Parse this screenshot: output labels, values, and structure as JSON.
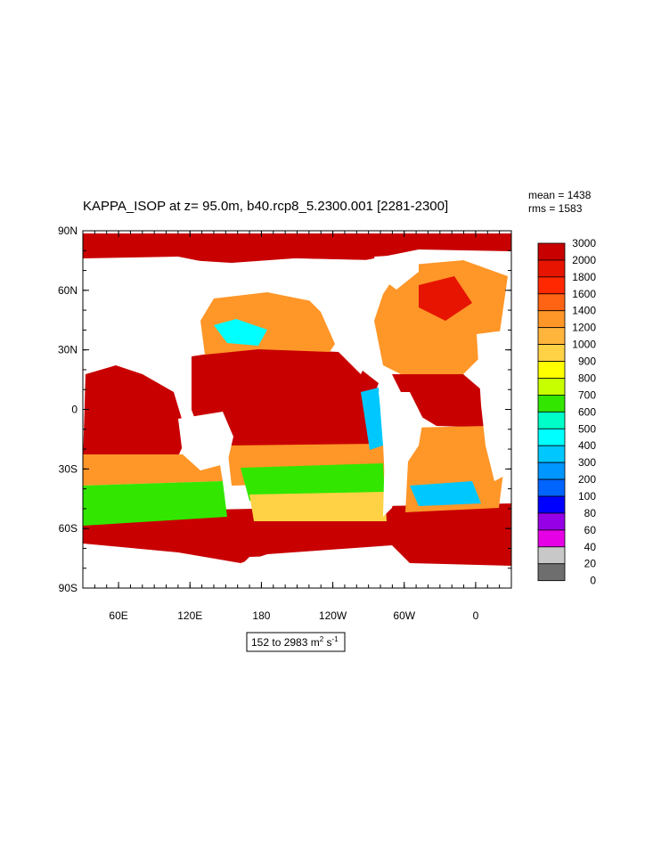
{
  "chart_data": {
    "type": "heatmap",
    "title": "KAPPA_ISOP at z=  95.0m, b40.rcp8_5.2300.001 [2281-2300]",
    "stats": {
      "mean": "mean = 1438",
      "rms": "rms = 1583"
    },
    "y_ticks": [
      {
        "lat": 90,
        "label": "90N"
      },
      {
        "lat": 60,
        "label": "60N"
      },
      {
        "lat": 30,
        "label": "30N"
      },
      {
        "lat": 0,
        "label": "0"
      },
      {
        "lat": -30,
        "label": "30S"
      },
      {
        "lat": -60,
        "label": "60S"
      },
      {
        "lat": -90,
        "label": "90S"
      }
    ],
    "x_ticks": [
      {
        "lon": 60,
        "label": "60E"
      },
      {
        "lon": 120,
        "label": "120E"
      },
      {
        "lon": 180,
        "label": "180"
      },
      {
        "lon": 240,
        "label": "120W"
      },
      {
        "lon": 300,
        "label": "60W"
      },
      {
        "lon": 360,
        "label": "0"
      }
    ],
    "lon_range": [
      30,
      390
    ],
    "lat_range": [
      -90,
      90
    ],
    "colorbar": {
      "levels": [
        "3000",
        "2000",
        "1800",
        "1600",
        "1400",
        "1200",
        "1000",
        "900",
        "800",
        "700",
        "600",
        "500",
        "400",
        "300",
        "200",
        "100",
        "80",
        "60",
        "40",
        "20",
        "0"
      ],
      "colors": [
        "#c80000",
        "#e61400",
        "#ff2800",
        "#ff6414",
        "#ff9628",
        "#ffb43c",
        "#ffd246",
        "#ffff00",
        "#c8ff00",
        "#32e600",
        "#00ffc8",
        "#00ffff",
        "#00c8ff",
        "#0096ff",
        "#0064ff",
        "#0000ff",
        "#9600e6",
        "#e600e6",
        "#c8c8c8",
        "#6e6e6e"
      ]
    },
    "range_label": {
      "text": "152 to 2983 m",
      "sup1": "2",
      "mid": " s",
      "sup2": "-1"
    },
    "fields": [
      {
        "region": "pacific-tropical",
        "value": 3000
      },
      {
        "region": "indian-north",
        "value": 3000
      },
      {
        "region": "southern-ocean",
        "value": 3000
      },
      {
        "region": "arctic",
        "value": 3000
      },
      {
        "region": "north-pacific",
        "value": 1400
      },
      {
        "region": "kuroshio",
        "value": 500
      },
      {
        "region": "south-pacific-band",
        "value": 1400
      },
      {
        "region": "south-indian-band",
        "value": 700
      },
      {
        "region": "north-atlantic",
        "value": 1400
      },
      {
        "region": "south-atlantic",
        "value": 1200
      },
      {
        "region": "brazil-malvinas",
        "value": 400
      },
      {
        "region": "east-pacific-coast",
        "value": 400
      }
    ]
  }
}
